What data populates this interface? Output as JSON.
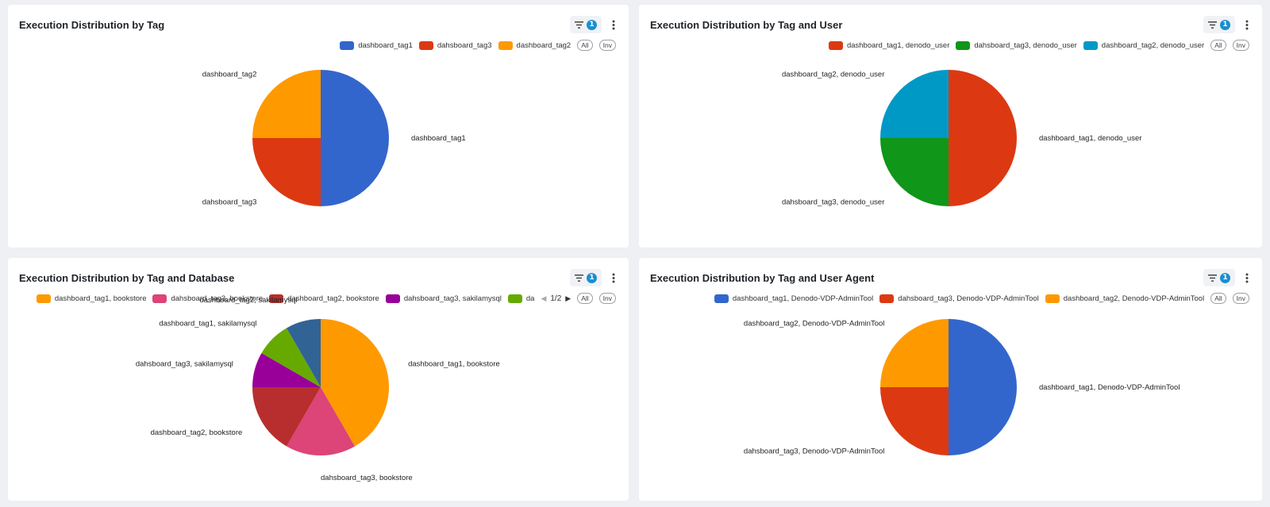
{
  "panels": [
    {
      "title": "Execution Distribution by Tag",
      "filter_count": "1",
      "legend": [
        {
          "label": "dashboard_tag1",
          "color": "#3366cc"
        },
        {
          "label": "dahsboard_tag3",
          "color": "#dc3912"
        },
        {
          "label": "dashboard_tag2",
          "color": "#ff9900"
        }
      ],
      "all_label": "All",
      "inv_label": "Inv"
    },
    {
      "title": "Execution Distribution by Tag and User",
      "filter_count": "1",
      "legend": [
        {
          "label": "dashboard_tag1, denodo_user",
          "color": "#dc3912"
        },
        {
          "label": "dahsboard_tag3, denodo_user",
          "color": "#109618"
        },
        {
          "label": "dashboard_tag2, denodo_user",
          "color": "#0099c6"
        }
      ],
      "all_label": "All",
      "inv_label": "Inv"
    },
    {
      "title": "Execution Distribution by Tag and Database",
      "filter_count": "1",
      "legend": [
        {
          "label": "dashboard_tag1, bookstore",
          "color": "#ff9900"
        },
        {
          "label": "dahsboard_tag3, bookstore",
          "color": "#dd4477"
        },
        {
          "label": "dashboard_tag2, bookstore",
          "color": "#b82e2e"
        },
        {
          "label": "dahsboard_tag3, sakilamysql",
          "color": "#990099"
        },
        {
          "label": "da",
          "color": "#66aa00"
        }
      ],
      "pager": "1/2",
      "all_label": "All",
      "inv_label": "Inv"
    },
    {
      "title": "Execution Distribution by Tag and User Agent",
      "filter_count": "1",
      "legend": [
        {
          "label": "dashboard_tag1, Denodo-VDP-AdminTool",
          "color": "#3366cc"
        },
        {
          "label": "dahsboard_tag3, Denodo-VDP-AdminTool",
          "color": "#dc3912"
        },
        {
          "label": "dashboard_tag2, Denodo-VDP-AdminTool",
          "color": "#ff9900"
        }
      ],
      "all_label": "All",
      "inv_label": "Inv"
    }
  ],
  "chart_data": [
    {
      "type": "pie",
      "title": "Execution Distribution by Tag",
      "slices": [
        {
          "label": "dashboard_tag1",
          "value": 2,
          "color": "#3366cc"
        },
        {
          "label": "dahsboard_tag3",
          "value": 1,
          "color": "#dc3912"
        },
        {
          "label": "dashboard_tag2",
          "value": 1,
          "color": "#ff9900"
        }
      ],
      "legend_position": "top-right"
    },
    {
      "type": "pie",
      "title": "Execution Distribution by Tag and User",
      "slices": [
        {
          "label": "dashboard_tag1, denodo_user",
          "value": 2,
          "color": "#dc3912"
        },
        {
          "label": "dahsboard_tag3, denodo_user",
          "value": 1,
          "color": "#109618"
        },
        {
          "label": "dashboard_tag2, denodo_user",
          "value": 1,
          "color": "#0099c6"
        }
      ],
      "legend_position": "top-right"
    },
    {
      "type": "pie",
      "title": "Execution Distribution by Tag and Database",
      "slices": [
        {
          "label": "dashboard_tag1, bookstore",
          "value": 7.5,
          "color": "#ff9900"
        },
        {
          "label": "dahsboard_tag3, bookstore",
          "value": 3,
          "color": "#dd4477"
        },
        {
          "label": "dashboard_tag2, bookstore",
          "value": 3,
          "color": "#b82e2e"
        },
        {
          "label": "dahsboard_tag3, sakilamysql",
          "value": 1.5,
          "color": "#990099"
        },
        {
          "label": "dashboard_tag1, sakilamysql",
          "value": 1.5,
          "color": "#66aa00"
        },
        {
          "label": "dashboard_tag2, sakilamysql",
          "value": 1.5,
          "color": "#316395"
        }
      ],
      "legend_position": "top-right"
    },
    {
      "type": "pie",
      "title": "Execution Distribution by Tag and User Agent",
      "slices": [
        {
          "label": "dashboard_tag1, Denodo-VDP-AdminTool",
          "value": 2,
          "color": "#3366cc"
        },
        {
          "label": "dahsboard_tag3, Denodo-VDP-AdminTool",
          "value": 1,
          "color": "#dc3912"
        },
        {
          "label": "dashboard_tag2, Denodo-VDP-AdminTool",
          "value": 1,
          "color": "#ff9900"
        }
      ],
      "legend_position": "top-right"
    }
  ]
}
